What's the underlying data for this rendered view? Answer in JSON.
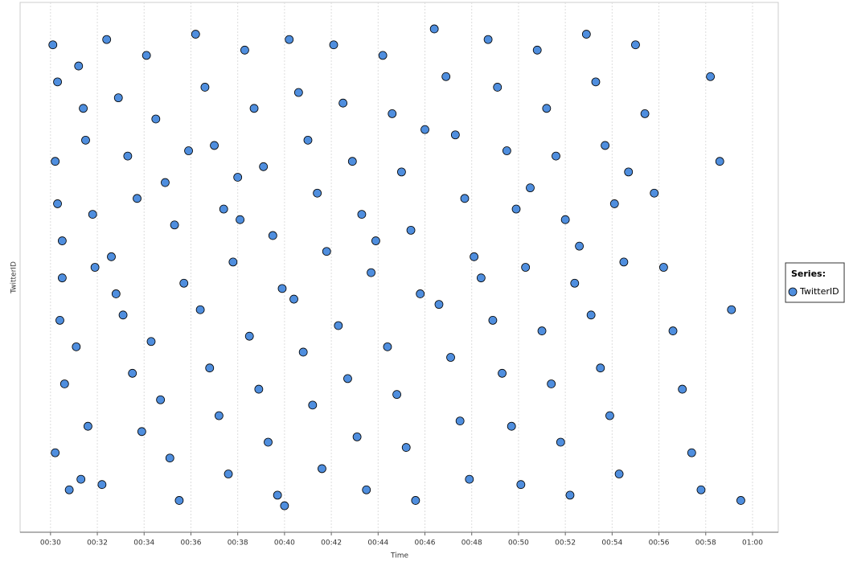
{
  "chart_data": {
    "type": "scatter",
    "x_label": "Time",
    "y_label": "TwitterID",
    "legend_title": "Series:",
    "legend": "right",
    "grid": true,
    "xlim": [
      28.7,
      61.1
    ],
    "ylim": [
      0,
      100
    ],
    "xticks": [
      {
        "value": 30,
        "label": "00:30"
      },
      {
        "value": 32,
        "label": "00:32"
      },
      {
        "value": 34,
        "label": "00:34"
      },
      {
        "value": 36,
        "label": "00:36"
      },
      {
        "value": 38,
        "label": "00:38"
      },
      {
        "value": 40,
        "label": "00:40"
      },
      {
        "value": 42,
        "label": "00:42"
      },
      {
        "value": 44,
        "label": "00:44"
      },
      {
        "value": 46,
        "label": "00:46"
      },
      {
        "value": 48,
        "label": "00:48"
      },
      {
        "value": 50,
        "label": "00:50"
      },
      {
        "value": 52,
        "label": "00:52"
      },
      {
        "value": 54,
        "label": "00:54"
      },
      {
        "value": 56,
        "label": "00:56"
      },
      {
        "value": 58,
        "label": "00:58"
      },
      {
        "value": 60,
        "label": "01:00"
      }
    ],
    "series": [
      {
        "name": "TwitterID",
        "color": "#4f8ede",
        "x": [
          30.1,
          30.3,
          30.2,
          30.5,
          30.4,
          30.6,
          30.2,
          30.8,
          30.3,
          30.5,
          31.2,
          31.5,
          31.8,
          31.1,
          31.6,
          31.3,
          31.9,
          31.4,
          32.4,
          32.9,
          33.3,
          33.7,
          32.6,
          33.1,
          33.5,
          33.9,
          32.2,
          32.8,
          34.1,
          34.5,
          34.9,
          35.3,
          35.7,
          34.3,
          34.7,
          35.1,
          35.5,
          35.9,
          36.2,
          36.6,
          37.0,
          37.4,
          37.8,
          36.4,
          36.8,
          37.2,
          37.6,
          38.0,
          38.3,
          38.7,
          39.1,
          39.5,
          39.9,
          38.5,
          38.9,
          39.3,
          39.7,
          38.1,
          40.2,
          40.6,
          41.0,
          41.4,
          41.8,
          40.4,
          40.8,
          41.2,
          41.6,
          40.0,
          42.1,
          42.5,
          42.9,
          43.3,
          43.7,
          42.3,
          42.7,
          43.1,
          43.5,
          43.9,
          44.2,
          44.6,
          45.0,
          45.4,
          45.8,
          44.4,
          44.8,
          45.2,
          45.6,
          46.0,
          46.4,
          46.9,
          47.3,
          47.7,
          48.1,
          46.6,
          47.1,
          47.5,
          47.9,
          48.4,
          48.7,
          49.1,
          49.5,
          49.9,
          50.3,
          48.9,
          49.3,
          49.7,
          50.1,
          50.5,
          50.8,
          51.2,
          51.6,
          52.0,
          52.4,
          51.0,
          51.4,
          51.8,
          52.2,
          52.6,
          52.9,
          53.3,
          53.7,
          54.1,
          54.5,
          53.1,
          53.5,
          53.9,
          54.3,
          54.7,
          55.0,
          55.4,
          55.8,
          56.2,
          56.6,
          57.0,
          57.4,
          57.8,
          58.2,
          58.6,
          59.1,
          59.5
        ],
        "values": [
          92,
          85,
          70,
          55,
          40,
          28,
          15,
          8,
          62,
          48,
          88,
          74,
          60,
          35,
          20,
          10,
          50,
          80,
          93,
          82,
          71,
          63,
          52,
          41,
          30,
          19,
          9,
          45,
          90,
          78,
          66,
          58,
          47,
          36,
          25,
          14,
          6,
          72,
          94,
          84,
          73,
          61,
          51,
          42,
          31,
          22,
          11,
          67,
          91,
          80,
          69,
          56,
          46,
          37,
          27,
          17,
          7,
          59,
          93,
          83,
          74,
          64,
          53,
          44,
          34,
          24,
          12,
          5,
          92,
          81,
          70,
          60,
          49,
          39,
          29,
          18,
          8,
          55,
          90,
          79,
          68,
          57,
          45,
          35,
          26,
          16,
          6,
          76,
          95,
          86,
          75,
          63,
          52,
          43,
          33,
          21,
          10,
          48,
          93,
          84,
          72,
          61,
          50,
          40,
          30,
          20,
          9,
          65,
          91,
          80,
          71,
          59,
          47,
          38,
          28,
          17,
          7,
          54,
          94,
          85,
          73,
          62,
          51,
          41,
          31,
          22,
          11,
          68,
          92,
          79,
          64,
          50,
          38,
          27,
          15,
          8,
          86,
          70,
          42,
          6
        ]
      }
    ]
  }
}
